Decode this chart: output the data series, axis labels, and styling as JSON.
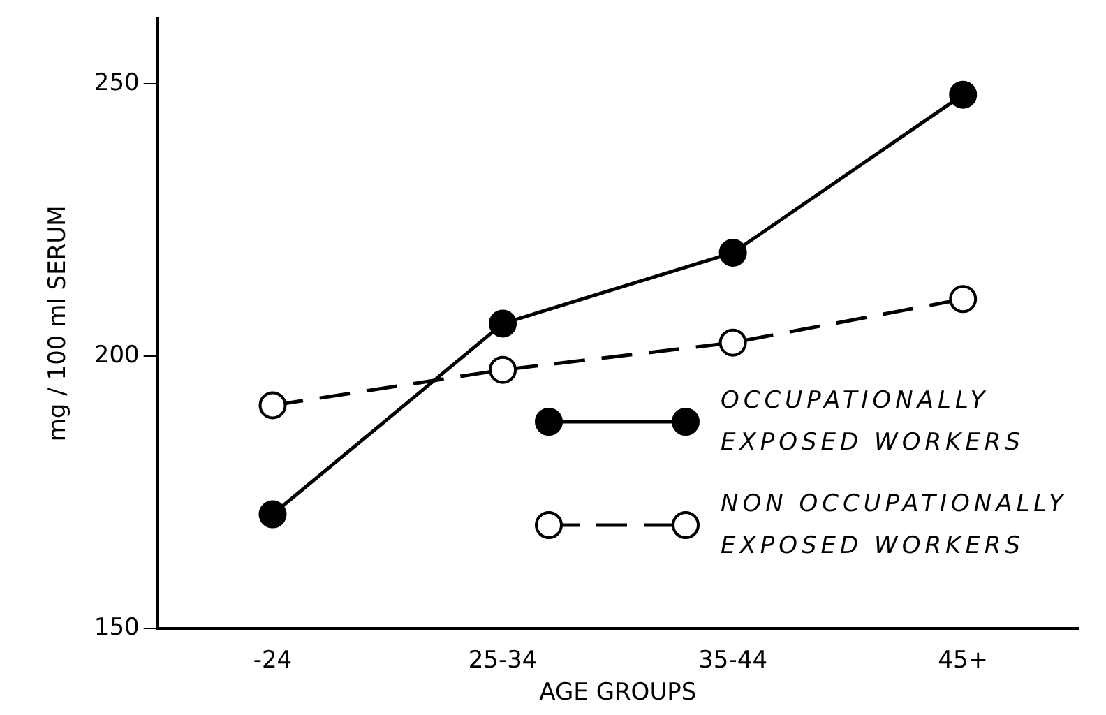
{
  "chart_data": {
    "type": "line",
    "xlabel": "AGE GROUPS",
    "ylabel": "mg / 100 ml SERUM",
    "categories": [
      "-24",
      "25-34",
      "35-44",
      "45+"
    ],
    "series": [
      {
        "name": "OCCUPATIONALLY EXPOSED WORKERS",
        "color": "#000000",
        "values": [
          171,
          206,
          219,
          248
        ],
        "line_style": "solid"
      },
      {
        "name": "NON OCCUPATIONALLY EXPOSED WORKERS",
        "color": "#000000",
        "values": [
          191,
          197.5,
          202.5,
          210.5
        ],
        "line_style": "dashed"
      }
    ],
    "ylim": [
      150,
      262
    ],
    "yticks": [
      150,
      200,
      250
    ],
    "grid": false,
    "legend": "right",
    "marker": "circle"
  }
}
